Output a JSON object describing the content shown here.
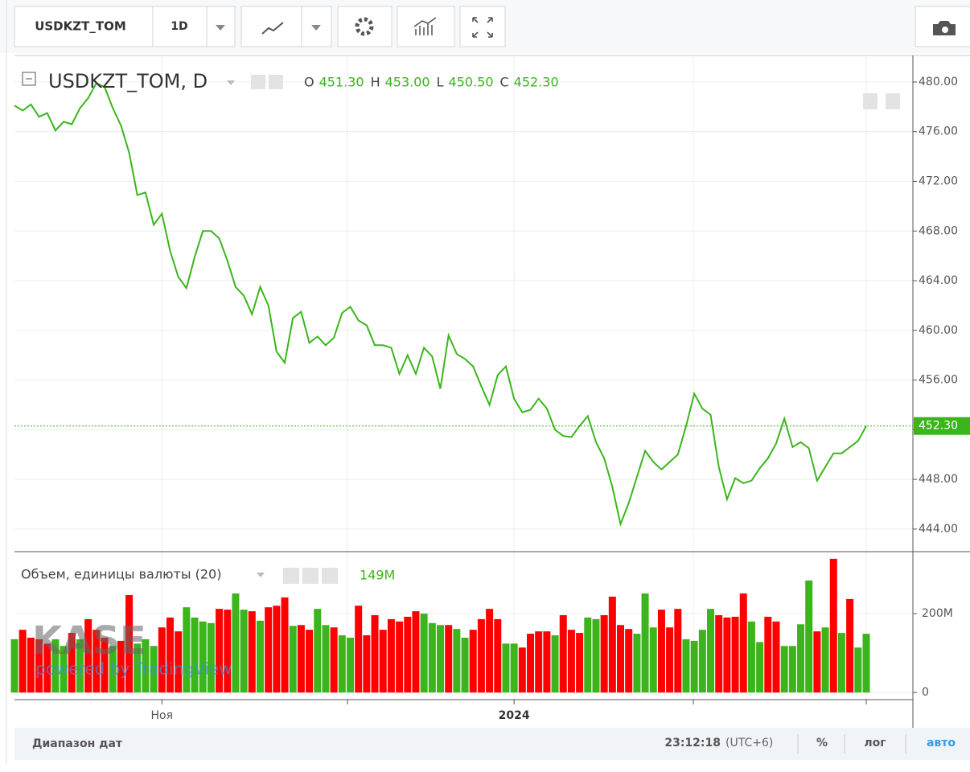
{
  "toolbar": {
    "symbol": "USDKZT_TOM",
    "interval": "1D"
  },
  "bottom_bar": {
    "range": "Диапазон дат",
    "time": "23:12:18",
    "timezone": "(UTC+6)",
    "percent": "%",
    "log": "лог",
    "auto": "авто"
  },
  "watermark": {
    "logo": "KASE",
    "powered": "powered by TradingView"
  },
  "chart_data": [
    {
      "type": "line",
      "ohlc": [
        {
          "label": "O",
          "value": "451.30"
        },
        {
          "label": "H",
          "value": "453.00"
        },
        {
          "label": "L",
          "value": "450.50"
        },
        {
          "label": "C",
          "value": "452.30"
        }
      ],
      "categories": [
        null,
        null,
        null,
        null,
        null,
        null,
        null,
        null,
        null,
        null,
        null,
        null,
        null,
        null,
        null,
        null,
        null,
        null,
        "Ноя",
        null,
        null,
        null,
        null,
        null,
        null,
        null,
        null,
        null,
        null,
        null,
        null,
        null,
        null,
        null,
        null,
        null,
        null,
        null,
        null,
        null,
        null,
        null,
        null,
        null,
        null,
        null,
        null,
        null,
        null,
        null,
        null,
        null,
        null,
        null,
        null,
        null,
        null,
        null,
        null,
        null,
        null,
        "2024",
        null,
        null,
        null,
        null,
        null,
        null,
        null,
        null,
        null,
        null,
        null,
        null,
        null,
        null,
        null,
        null,
        null,
        null,
        null,
        null,
        null,
        null,
        null,
        null,
        null,
        null,
        null,
        null,
        null,
        null,
        null,
        null,
        null,
        null,
        null,
        null,
        null,
        null,
        null,
        null,
        null,
        null,
        null
      ],
      "series": [
        {
          "name": "USDKZT_TOM, D",
          "color": "#3cb51c",
          "last_label": "452.30",
          "values": [
            478.1,
            477.7,
            478.2,
            477.2,
            477.5,
            476.1,
            476.8,
            476.6,
            477.9,
            478.7,
            479.9,
            479.6,
            477.9,
            476.5,
            474.3,
            470.9,
            471.1,
            468.5,
            469.4,
            466.4,
            464.3,
            463.4,
            465.9,
            468.0,
            468.0,
            467.4,
            465.6,
            463.5,
            462.8,
            461.3,
            463.5,
            462.0,
            458.3,
            457.4,
            461.0,
            461.5,
            459.0,
            459.5,
            458.8,
            459.4,
            461.4,
            461.9,
            460.8,
            460.4,
            458.8,
            458.8,
            458.6,
            456.5,
            458.0,
            456.5,
            458.6,
            457.9,
            455.3,
            459.6,
            458.1,
            457.7,
            457.1,
            455.5,
            454.0,
            456.4,
            457.1,
            454.5,
            453.4,
            453.6,
            454.5,
            453.7,
            452.0,
            451.5,
            451.4,
            452.3,
            453.1,
            451.0,
            449.7,
            447.4,
            444.4,
            446.1,
            448.2,
            450.3,
            449.4,
            448.8,
            449.4,
            450.0,
            452.3,
            454.9,
            453.7,
            453.2,
            449.0,
            446.4,
            448.1,
            447.7,
            447.9,
            448.9,
            449.7,
            450.9,
            452.9,
            450.6,
            451.0,
            450.5,
            447.9,
            449.0,
            450.1,
            450.1,
            450.6,
            451.1,
            452.3
          ]
        }
      ],
      "ylim": [
        442.18,
        482.07
      ],
      "yticks": [
        {
          "value": 444,
          "label": "444.00"
        },
        {
          "value": 448,
          "label": "448.00"
        },
        {
          "value": 452,
          "label": "452.00"
        },
        {
          "value": 456,
          "label": "456.00"
        },
        {
          "value": 460,
          "label": "460.00"
        },
        {
          "value": 464,
          "label": "464.00"
        },
        {
          "value": 468,
          "label": "468.00"
        },
        {
          "value": 472,
          "label": "472.00"
        },
        {
          "value": 476,
          "label": "476.00"
        },
        {
          "value": 480,
          "label": "480.00"
        }
      ],
      "grid": true
    },
    {
      "type": "bar",
      "series": [
        {
          "name": "Объем, единицы валюты (20)",
          "last_label": "149M",
          "values": [
            135,
            159,
            139,
            135,
            124,
            135,
            118,
            151,
            135,
            186,
            159,
            139,
            118,
            131,
            247,
            124,
            135,
            118,
            165,
            190,
            155,
            216,
            190,
            180,
            176,
            212,
            210,
            251,
            210,
            206,
            182,
            216,
            220,
            241,
            169,
            171,
            159,
            212,
            171,
            165,
            145,
            139,
            220,
            145,
            196,
            159,
            186,
            180,
            192,
            206,
            200,
            176,
            171,
            171,
            161,
            139,
            159,
            186,
            212,
            186,
            124,
            124,
            114,
            149,
            155,
            155,
            145,
            196,
            159,
            151,
            190,
            186,
            196,
            243,
            171,
            161,
            149,
            251,
            165,
            210,
            165,
            212,
            135,
            131,
            159,
            212,
            196,
            190,
            192,
            251,
            180,
            128,
            192,
            180,
            118,
            118,
            173,
            284,
            155,
            165,
            339,
            151,
            237,
            114,
            149
          ],
          "colors": [
            "#3cb51c",
            "#ff0000",
            "#ff0000",
            "#ff0000",
            "#ff0000",
            "#3cb51c",
            "#3cb51c",
            "#ff0000",
            "#3cb51c",
            "#ff0000",
            "#ff0000",
            "#ff0000",
            "#3cb51c",
            "#ff0000",
            "#ff0000",
            "#3cb51c",
            "#3cb51c",
            "#3cb51c",
            "#ff0000",
            "#ff0000",
            "#ff0000",
            "#3cb51c",
            "#3cb51c",
            "#3cb51c",
            "#3cb51c",
            "#ff0000",
            "#ff0000",
            "#3cb51c",
            "#3cb51c",
            "#ff0000",
            "#3cb51c",
            "#ff0000",
            "#ff0000",
            "#ff0000",
            "#3cb51c",
            "#ff0000",
            "#ff0000",
            "#3cb51c",
            "#3cb51c",
            "#ff0000",
            "#3cb51c",
            "#3cb51c",
            "#ff0000",
            "#ff0000",
            "#ff0000",
            "#ff0000",
            "#ff0000",
            "#ff0000",
            "#ff0000",
            "#ff0000",
            "#3cb51c",
            "#3cb51c",
            "#3cb51c",
            "#ff0000",
            "#3cb51c",
            "#3cb51c",
            "#ff0000",
            "#ff0000",
            "#ff0000",
            "#ff0000",
            "#3cb51c",
            "#3cb51c",
            "#ff0000",
            "#ff0000",
            "#ff0000",
            "#ff0000",
            "#3cb51c",
            "#ff0000",
            "#ff0000",
            "#ff0000",
            "#3cb51c",
            "#3cb51c",
            "#ff0000",
            "#ff0000",
            "#ff0000",
            "#ff0000",
            "#3cb51c",
            "#3cb51c",
            "#3cb51c",
            "#ff0000",
            "#ff0000",
            "#ff0000",
            "#3cb51c",
            "#3cb51c",
            "#3cb51c",
            "#3cb51c",
            "#ff0000",
            "#ff0000",
            "#ff0000",
            "#ff0000",
            "#3cb51c",
            "#3cb51c",
            "#ff0000",
            "#ff0000",
            "#3cb51c",
            "#3cb51c",
            "#3cb51c",
            "#3cb51c",
            "#ff0000",
            "#3cb51c",
            "#ff0000",
            "#3cb51c",
            "#ff0000",
            "#3cb51c",
            "#3cb51c"
          ]
        }
      ],
      "ylim": [
        -18,
        357
      ],
      "yticks": [
        0,
        {
          "value": 200,
          "label": "200M"
        }
      ]
    }
  ]
}
